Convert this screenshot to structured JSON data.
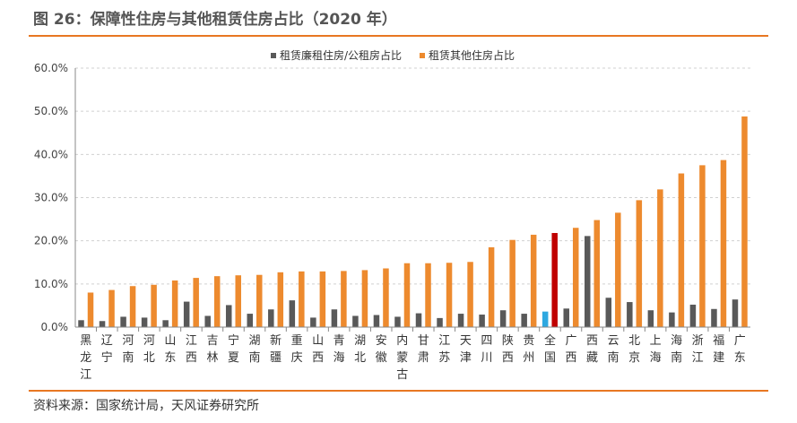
{
  "header": {
    "title": "图 26：保障性住房与其他租赁住房占比（2020 年）"
  },
  "footer": {
    "source": "资料来源：国家统计局，天风证券研究所"
  },
  "colors": {
    "accent": "#E87722",
    "series1": "#595959",
    "series2": "#ED8A2E",
    "highlight1": "#2EA8E0",
    "highlight2": "#C00000"
  },
  "chart_data": {
    "type": "bar",
    "title": "",
    "xlabel": "",
    "ylabel": "",
    "ylim": [
      0,
      60
    ],
    "yticks": [
      "0.0%",
      "10.0%",
      "20.0%",
      "30.0%",
      "40.0%",
      "50.0%",
      "60.0%"
    ],
    "grid": true,
    "legend_position": "top",
    "categories": [
      "黑龙江",
      "辽宁",
      "河南",
      "河北",
      "山东",
      "江西",
      "吉林",
      "宁夏",
      "湖南",
      "新疆",
      "重庆",
      "山西",
      "青海",
      "湖北",
      "安徽",
      "内蒙古",
      "甘肃",
      "江苏",
      "天津",
      "四川",
      "陕西",
      "贵州",
      "全国",
      "广西",
      "西藏",
      "云南",
      "北京",
      "上海",
      "海南",
      "浙江",
      "福建",
      "广东"
    ],
    "highlight_category": "全国",
    "series": [
      {
        "name": "租赁廉租住房/公租房占比",
        "values": [
          1.6,
          1.4,
          2.4,
          2.2,
          1.6,
          5.9,
          2.6,
          5.1,
          3.1,
          4.1,
          6.2,
          2.2,
          4.1,
          2.6,
          2.8,
          2.4,
          3.2,
          2.1,
          3.1,
          2.9,
          3.9,
          3.1,
          3.6,
          4.3,
          21.1,
          6.8,
          5.8,
          3.9,
          3.4,
          5.2,
          4.2,
          6.4
        ]
      },
      {
        "name": "租赁其他住房占比",
        "values": [
          8.0,
          8.6,
          9.5,
          9.8,
          10.8,
          11.4,
          11.8,
          12.0,
          12.1,
          12.7,
          12.9,
          12.9,
          13.0,
          13.2,
          13.6,
          14.8,
          14.8,
          14.9,
          15.1,
          18.5,
          20.2,
          21.4,
          21.8,
          23.0,
          24.8,
          26.5,
          29.4,
          31.9,
          35.6,
          37.5,
          38.7,
          48.8
        ]
      }
    ]
  }
}
